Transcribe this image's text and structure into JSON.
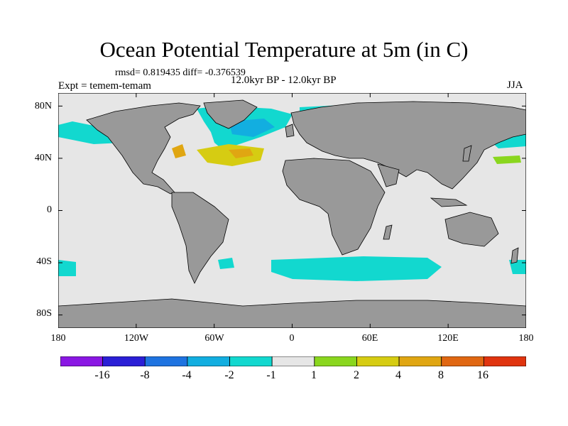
{
  "title": "Ocean Potential Temperature at 5m (in C)",
  "stats": "rmsd= 0.819435 diff= -0.376539",
  "experiment": "Expt = temem-temam",
  "center_label": "12.0kyr BP - 12.0kyr BP",
  "season": "JJA",
  "map": {
    "projection": "cylindrical equidistant",
    "lon_range": [
      -180,
      180
    ],
    "lat_range": [
      -90,
      90
    ],
    "land_color": "#999999",
    "ocean_color": "#e6e6e6",
    "y_tick_labels": [
      "80N",
      "40N",
      "0",
      "40S",
      "80S"
    ],
    "x_tick_labels": [
      "180",
      "120W",
      "60W",
      "0",
      "60E",
      "120E",
      "180"
    ]
  },
  "colorbar": {
    "colors": [
      "#8a17e3",
      "#2b1fd6",
      "#1e73e0",
      "#12aee0",
      "#12d8cf",
      "#e6e6e6",
      "#8ad61e",
      "#d6cc12",
      "#e0a612",
      "#e06712",
      "#e0340f"
    ],
    "labels": [
      "-16",
      "-8",
      "-4",
      "-2",
      "-1",
      "1",
      "2",
      "4",
      "8",
      "16"
    ]
  }
}
